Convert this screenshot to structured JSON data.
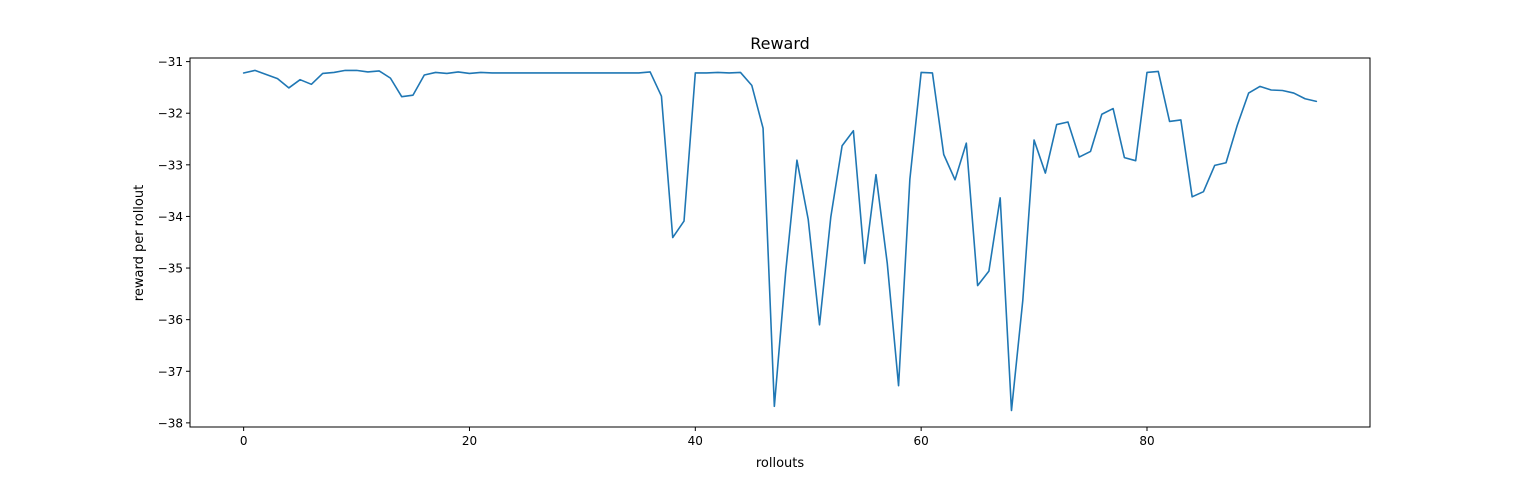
{
  "chart_data": {
    "type": "line",
    "title": "Reward",
    "xlabel": "rollouts",
    "ylabel": "reward per rollout",
    "xlim": [
      -4.75,
      99.75
    ],
    "ylim": [
      -38.08,
      -30.93
    ],
    "xticks": [
      0,
      20,
      40,
      60,
      80
    ],
    "yticks": [
      -31,
      -32,
      -33,
      -34,
      -35,
      -36,
      -37,
      -38
    ],
    "grid": false,
    "line_color": "#1f77b4",
    "series": [
      {
        "x": [
          0,
          1,
          2,
          3,
          4,
          5,
          6,
          7,
          8,
          9,
          10,
          11,
          12,
          13,
          14,
          15,
          16,
          17,
          18,
          19,
          20,
          21,
          22,
          23,
          24,
          25,
          26,
          27,
          28,
          29,
          30,
          31,
          32,
          33,
          34,
          35,
          36,
          37,
          38,
          39,
          40,
          41,
          42,
          43,
          44,
          45,
          46,
          47,
          48,
          49,
          50,
          51,
          52,
          53,
          54,
          55,
          56,
          57,
          58,
          59,
          60,
          61,
          62,
          63,
          64,
          65,
          66,
          67,
          68,
          69,
          70,
          71,
          72,
          73,
          74,
          75,
          76,
          77,
          78,
          79,
          80,
          81,
          82,
          83,
          84,
          85,
          86,
          87,
          88,
          89,
          90,
          91,
          92,
          93,
          94,
          95
        ],
        "values": [
          -31.22,
          -31.17,
          -31.25,
          -31.33,
          -31.51,
          -31.35,
          -31.44,
          -31.23,
          -31.21,
          -31.17,
          -31.17,
          -31.2,
          -31.18,
          -31.32,
          -31.68,
          -31.65,
          -31.26,
          -31.21,
          -31.23,
          -31.2,
          -31.23,
          -31.21,
          -31.22,
          -31.22,
          -31.22,
          -31.22,
          -31.22,
          -31.22,
          -31.22,
          -31.22,
          -31.22,
          -31.22,
          -31.22,
          -31.22,
          -31.22,
          -31.22,
          -31.2,
          -31.67,
          -34.41,
          -34.09,
          -31.22,
          -31.22,
          -31.21,
          -31.22,
          -31.21,
          -31.46,
          -32.29,
          -37.68,
          -35.08,
          -32.91,
          -34.06,
          -36.1,
          -34.01,
          -32.63,
          -32.34,
          -34.91,
          -33.19,
          -34.91,
          -37.28,
          -33.28,
          -31.21,
          -31.22,
          -32.8,
          -33.29,
          -32.58,
          -35.34,
          -35.06,
          -33.64,
          -37.76,
          -35.63,
          -32.52,
          -33.16,
          -32.22,
          -32.17,
          -32.85,
          -32.74,
          -32.02,
          -31.91,
          -32.86,
          -32.92,
          -31.21,
          -31.19,
          -32.16,
          -32.13,
          -33.62,
          -33.52,
          -33.01,
          -32.96,
          -32.23,
          -31.61,
          -31.48,
          -31.55,
          -31.56,
          -31.61,
          -31.72,
          -31.77
        ]
      }
    ]
  }
}
